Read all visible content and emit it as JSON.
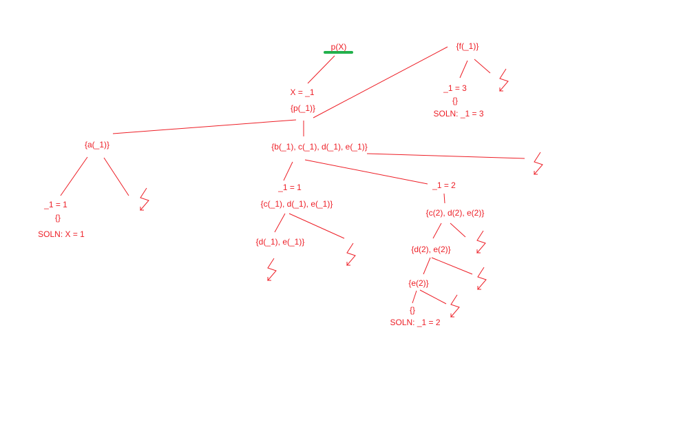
{
  "colors": {
    "ink": "#ed1c24",
    "highlight": "#22b14c"
  },
  "labels": {
    "root": "p(X)",
    "x_bind": "X = _1",
    "goal_p": "{p(_1)}",
    "goal_f": "{f(_1)}",
    "f_bind": "_1 = 3",
    "f_empty": "{}",
    "f_soln": "SOLN: _1 = 3",
    "goal_a": "{a(_1)}",
    "a_bind": "_1 = 1",
    "a_empty": "{}",
    "a_soln": "SOLN: X = 1",
    "goal_bcde": "{b(_1), c(_1), d(_1), e(_1)}",
    "b_bind1": "_1 = 1",
    "goal_cde_1": "{c(_1), d(_1), e(_1)}",
    "goal_de_1": "{d(_1), e(_1)}",
    "b_bind2": "_1 = 2",
    "goal_cde_2": "{c(2), d(2), e(2)}",
    "goal_de_2": "{d(2), e(2)}",
    "goal_e_2": "{e(2)}",
    "e_empty": "{}",
    "e_soln": "SOLN: _1 = 2"
  }
}
